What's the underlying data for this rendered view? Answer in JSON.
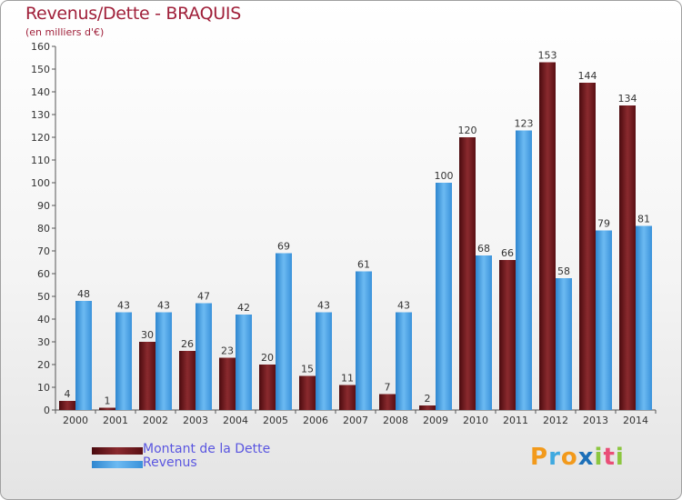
{
  "header": {
    "title": "Revenus/Dette - BRAQUIS",
    "subtitle": "(en milliers d'€)"
  },
  "legend": [
    {
      "label": "Montant de la Dette",
      "color": "#7a1a1f"
    },
    {
      "label": "Revenus",
      "color": "#4aa3e6"
    }
  ],
  "logo": {
    "letters": [
      "P",
      "r",
      "o",
      "x",
      "i",
      "t",
      "i"
    ],
    "colors": [
      "#f29a1c",
      "#3fa9e0",
      "#f29a1c",
      "#1c6fb8",
      "#8cc63f",
      "#e94e77",
      "#8cc63f"
    ]
  },
  "chart_data": {
    "type": "bar",
    "categories": [
      "2000",
      "2001",
      "2002",
      "2003",
      "2004",
      "2005",
      "2006",
      "2007",
      "2008",
      "2009",
      "2010",
      "2011",
      "2012",
      "2013",
      "2014"
    ],
    "series": [
      {
        "name": "Montant de la Dette",
        "color": "#7a1a1f",
        "values": [
          4,
          1,
          30,
          26,
          23,
          20,
          15,
          11,
          7,
          2,
          120,
          66,
          153,
          144,
          134
        ]
      },
      {
        "name": "Revenus",
        "color": "#4aa3e6",
        "values": [
          48,
          43,
          43,
          47,
          42,
          69,
          43,
          61,
          43,
          100,
          68,
          123,
          58,
          79,
          81
        ]
      }
    ],
    "yticks": [
      0,
      10,
      20,
      30,
      40,
      50,
      60,
      70,
      80,
      90,
      100,
      110,
      120,
      130,
      140,
      150,
      160
    ],
    "ylim": [
      0,
      160
    ],
    "grid": false,
    "legend_position": "bottom-left"
  }
}
